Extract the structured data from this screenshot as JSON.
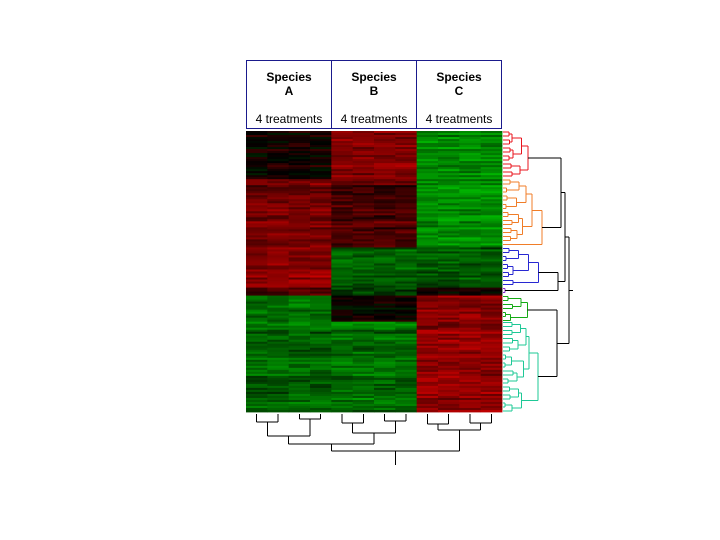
{
  "chart_data": {
    "type": "heatmap",
    "title": "",
    "xlabel": "",
    "ylabel": "",
    "color_scale": {
      "low": "#00b400",
      "mid": "#000000",
      "high": "#c80000"
    },
    "columns": [
      {
        "species": "Species",
        "letter": "A",
        "treatments": "4 treatments"
      },
      {
        "species": "Species",
        "letter": "B",
        "treatments": "4 treatments"
      },
      {
        "species": "Species",
        "letter": "C",
        "treatments": "4 treatments"
      }
    ],
    "column_dendrogram": true,
    "row_dendrogram": true,
    "row_clusters": [
      {
        "color": "#e8141e",
        "fraction": 0.17,
        "pattern": [
          0.05,
          0.65,
          -0.75
        ]
      },
      {
        "color": "#f07d28",
        "fraction": 0.24,
        "pattern": [
          0.55,
          0.35,
          -0.8
        ]
      },
      {
        "color": "#2828d2",
        "fraction": 0.14,
        "pattern": [
          0.7,
          -0.5,
          -0.45
        ]
      },
      {
        "color": "#8c28d2",
        "fraction": 0.03,
        "pattern": [
          0.45,
          -0.25,
          0.15
        ]
      },
      {
        "color": "#14aa14",
        "fraction": 0.09,
        "pattern": [
          -0.6,
          0.05,
          0.7
        ]
      },
      {
        "color": "#1ec896",
        "fraction": 0.33,
        "pattern": [
          -0.55,
          -0.6,
          0.72
        ]
      }
    ]
  }
}
